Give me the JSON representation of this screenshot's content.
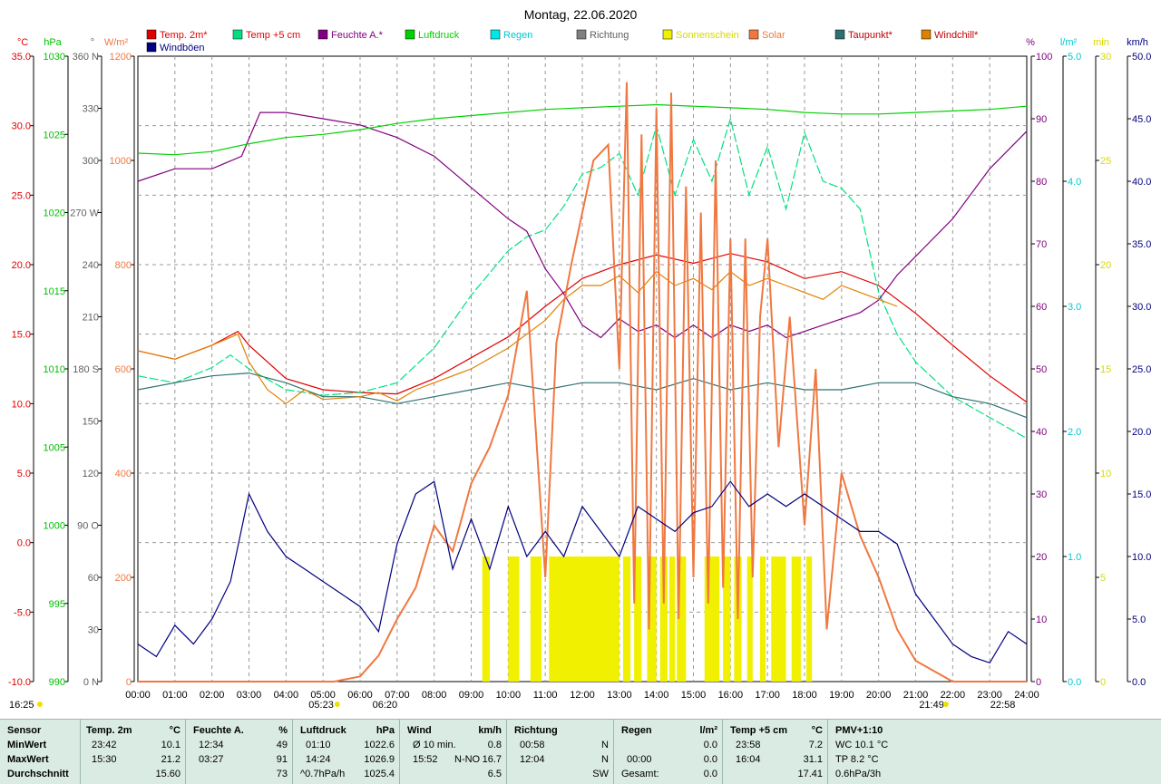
{
  "chart_data": {
    "type": "line",
    "title": "Montag, 22.06.2020",
    "x": [
      "00:00",
      "01:00",
      "02:00",
      "03:00",
      "04:00",
      "05:00",
      "06:00",
      "07:00",
      "08:00",
      "09:00",
      "10:00",
      "11:00",
      "12:00",
      "13:00",
      "14:00",
      "15:00",
      "16:00",
      "17:00",
      "18:00",
      "19:00",
      "20:00",
      "21:00",
      "22:00",
      "23:00",
      "24:00"
    ],
    "legend": [
      "Temp. 2m*",
      "Temp +5 cm",
      "Feuchte A.*",
      "Luftdruck",
      "Regen",
      "Richtung",
      "Sonnenschein",
      "Solar",
      "Taupunkt*",
      "Windchill*",
      "Windböen"
    ],
    "axes": {
      "temp": {
        "unit": "°C",
        "ticks": [
          "35.0",
          "30.0",
          "25.0",
          "20.0",
          "15.0",
          "10.0",
          "5.0",
          "0.0",
          "-5.0",
          "-10.0"
        ],
        "ylim": [
          -10,
          35
        ]
      },
      "pressure": {
        "unit": "hPa",
        "ticks": [
          "1030",
          "1025",
          "1020",
          "1015",
          "1010",
          "1005",
          "1000",
          "995",
          "990"
        ],
        "ylim": [
          990,
          1030
        ]
      },
      "direction": {
        "unit": "°",
        "ticks": [
          "360 N",
          "330",
          "300",
          "270 W",
          "240",
          "210",
          "180 S",
          "150",
          "120",
          "90 O",
          "60",
          "30",
          "0 N"
        ],
        "ylim": [
          0,
          360
        ]
      },
      "solar": {
        "unit": "W/m²",
        "ticks": [
          "1200",
          "1000",
          "800",
          "600",
          "400",
          "200",
          "0"
        ],
        "ylim": [
          0,
          1200
        ]
      },
      "humidity": {
        "unit": "%",
        "ticks": [
          "100",
          "90",
          "80",
          "70",
          "60",
          "50",
          "40",
          "30",
          "20",
          "10",
          "0"
        ],
        "ylim": [
          0,
          100
        ]
      },
      "rain": {
        "unit": "l/m²",
        "ticks": [
          "5.0",
          "4.0",
          "3.0",
          "2.0",
          "1.0",
          "0.0"
        ],
        "ylim": [
          0,
          5
        ]
      },
      "sunshine": {
        "unit": "min",
        "ticks": [
          "30",
          "25",
          "20",
          "15",
          "10",
          "5",
          "0"
        ],
        "ylim": [
          0,
          30
        ]
      },
      "wind": {
        "unit": "km/h",
        "ticks": [
          "50.0",
          "45.0",
          "40.0",
          "35.0",
          "30.0",
          "25.0",
          "20.0",
          "15.0",
          "10.0",
          "5.0",
          "0.0"
        ],
        "ylim": [
          0,
          50
        ]
      }
    },
    "series": [
      {
        "name": "Temp. 2m*",
        "axis": "temp",
        "color": "#e00000",
        "x": [
          0,
          1,
          2,
          2.7,
          3,
          4,
          5,
          6,
          7,
          8,
          9,
          10,
          11,
          12,
          13,
          14,
          15,
          16,
          17,
          18,
          19,
          20,
          21,
          22,
          23,
          24
        ],
        "values": [
          13.8,
          13.2,
          14.2,
          15.2,
          14.2,
          11.8,
          11.0,
          10.8,
          10.7,
          11.8,
          13.3,
          14.8,
          17.0,
          19.0,
          20.0,
          20.7,
          20.1,
          20.8,
          20.2,
          19.0,
          19.5,
          18.5,
          16.5,
          14.2,
          12.0,
          10.1
        ]
      },
      {
        "name": "Temp +5 cm",
        "axis": "temp",
        "color": "#00e080",
        "x": [
          0,
          1,
          2,
          2.5,
          3,
          4,
          5,
          6,
          7,
          8,
          9,
          10,
          10.5,
          11,
          11.5,
          12,
          12.5,
          13,
          13.5,
          14,
          14.5,
          15,
          15.5,
          16,
          16.5,
          17,
          17.5,
          18,
          18.5,
          19,
          19.5,
          20,
          20.5,
          21,
          22,
          23,
          24
        ],
        "values": [
          12.0,
          11.5,
          12.6,
          13.5,
          12.5,
          11.0,
          10.6,
          10.8,
          11.5,
          14.0,
          17.8,
          21.0,
          22.0,
          22.5,
          24.2,
          26.5,
          27.0,
          28.0,
          25.0,
          30.0,
          25.0,
          29.0,
          26.0,
          30.5,
          25.0,
          28.5,
          24.0,
          29.5,
          26.0,
          25.5,
          24.0,
          18.0,
          15.0,
          13.0,
          10.5,
          9.0,
          7.5
        ]
      },
      {
        "name": "Feuchte A.*",
        "axis": "humidity",
        "color": "#800080",
        "x": [
          0,
          1,
          2,
          2.8,
          3.3,
          4,
          5,
          6,
          7,
          8,
          9,
          10,
          10.5,
          11,
          11.5,
          12,
          12.5,
          13,
          13.5,
          14,
          14.5,
          15,
          15.5,
          16,
          16.5,
          17,
          17.5,
          18,
          18.5,
          19,
          19.5,
          20,
          20.5,
          21,
          22,
          23,
          24
        ],
        "values": [
          80,
          82,
          82,
          84,
          91,
          91,
          90,
          89,
          87,
          84,
          79,
          74,
          72,
          66,
          62,
          57,
          55,
          58,
          56,
          57,
          55,
          57,
          55,
          57,
          56,
          57,
          55,
          56,
          57,
          58,
          59,
          61,
          65,
          68,
          74,
          82,
          88
        ]
      },
      {
        "name": "Luftdruck",
        "axis": "pressure",
        "color": "#00d000",
        "x": [
          0,
          1,
          2,
          3,
          4,
          5,
          6,
          7,
          8,
          9,
          10,
          11,
          12,
          13,
          14,
          15,
          16,
          17,
          18,
          19,
          20,
          21,
          22,
          23,
          24
        ],
        "values": [
          1023.8,
          1023.7,
          1023.9,
          1024.4,
          1024.8,
          1025.0,
          1025.3,
          1025.7,
          1026.0,
          1026.2,
          1026.4,
          1026.6,
          1026.7,
          1026.8,
          1026.9,
          1026.8,
          1026.7,
          1026.6,
          1026.4,
          1026.3,
          1026.3,
          1026.4,
          1026.5,
          1026.6,
          1026.8
        ]
      },
      {
        "name": "Taupunkt*",
        "axis": "temp",
        "color": "#2f6f6f",
        "x": [
          0,
          1,
          2,
          3,
          4,
          5,
          6,
          7,
          8,
          9,
          10,
          11,
          12,
          13,
          14,
          15,
          16,
          17,
          18,
          19,
          20,
          21,
          22,
          23,
          24
        ],
        "values": [
          11.0,
          11.5,
          12.0,
          12.2,
          11.5,
          10.5,
          10.5,
          10.0,
          10.5,
          11.0,
          11.5,
          11.0,
          11.5,
          11.5,
          11.0,
          11.8,
          11.0,
          11.5,
          11.0,
          11.0,
          11.5,
          11.5,
          10.5,
          10.0,
          9.0
        ]
      },
      {
        "name": "Windchill*",
        "axis": "temp",
        "color": "#e08000",
        "x": [
          0,
          1,
          2,
          2.7,
          3,
          3.5,
          4,
          4.5,
          5,
          6,
          6.5,
          7,
          7.5,
          8,
          9,
          10,
          11,
          11.5,
          12,
          12.5,
          13,
          13.5,
          14,
          14.5,
          15,
          15.5,
          16,
          16.5,
          17,
          17.5,
          18,
          18.5,
          19,
          19.5,
          20,
          20.5
        ],
        "values": [
          13.8,
          13.2,
          14.2,
          15.0,
          13.0,
          11.0,
          10.0,
          11.0,
          10.3,
          10.5,
          10.8,
          10.2,
          11.0,
          11.5,
          12.5,
          14.0,
          16.0,
          17.5,
          18.5,
          18.5,
          19.2,
          18.0,
          19.5,
          18.5,
          19.0,
          18.2,
          19.5,
          18.5,
          19.0,
          18.5,
          18.0,
          17.5,
          18.5,
          18.0,
          17.5,
          17.0
        ]
      },
      {
        "name": "Solar",
        "axis": "solar",
        "color": "#f07840",
        "x": [
          0,
          5.3,
          6,
          6.5,
          7,
          7.5,
          8,
          8.5,
          9,
          9.5,
          10,
          10.5,
          10.8,
          11,
          11.3,
          11.7,
          12,
          12.3,
          12.7,
          13,
          13.2,
          13.4,
          13.6,
          13.8,
          14,
          14.2,
          14.4,
          14.6,
          14.8,
          15,
          15.2,
          15.4,
          15.6,
          15.8,
          16,
          16.2,
          16.4,
          16.6,
          16.8,
          17,
          17.3,
          17.6,
          18,
          18.3,
          18.6,
          19,
          19.5,
          20,
          20.5,
          21,
          21.5,
          22,
          24
        ],
        "values": [
          0,
          0,
          10,
          50,
          120,
          180,
          300,
          250,
          380,
          450,
          550,
          750,
          420,
          200,
          650,
          800,
          900,
          1000,
          1030,
          600,
          1150,
          150,
          1050,
          100,
          1100,
          150,
          1130,
          120,
          950,
          200,
          900,
          150,
          1000,
          180,
          850,
          120,
          850,
          200,
          700,
          850,
          450,
          700,
          300,
          600,
          100,
          400,
          280,
          200,
          100,
          40,
          20,
          0,
          0
        ]
      },
      {
        "name": "Windböen",
        "axis": "wind",
        "color": "#000080",
        "x": [
          0,
          0.5,
          1,
          1.5,
          2,
          2.5,
          3,
          3.5,
          4,
          4.5,
          5,
          5.5,
          6,
          6.5,
          7,
          7.5,
          8,
          8.5,
          9,
          9.5,
          10,
          10.5,
          11,
          11.5,
          12,
          12.5,
          13,
          13.5,
          14,
          14.5,
          15,
          15.5,
          16,
          16.5,
          17,
          17.5,
          18,
          18.5,
          19,
          19.5,
          20,
          20.5,
          21,
          21.5,
          22,
          22.5,
          23,
          23.5,
          24
        ],
        "values": [
          3.0,
          2.0,
          4.5,
          3.0,
          5.0,
          8.0,
          15.0,
          12.0,
          10.0,
          9.0,
          8.0,
          7.0,
          6.0,
          4.0,
          11.0,
          15.0,
          16.0,
          9.0,
          13.0,
          9.0,
          14.0,
          10.0,
          12.0,
          10.0,
          14.0,
          12.0,
          10.0,
          14.0,
          13.0,
          12.0,
          13.5,
          14.0,
          16.0,
          14.0,
          15.0,
          14.0,
          15.0,
          14.0,
          13.0,
          12.0,
          12.0,
          11.0,
          7.0,
          5.0,
          3.0,
          2.0,
          1.5,
          4.0,
          3.0
        ]
      }
    ],
    "sunshine_bars": [
      [
        9.3,
        9.5
      ],
      [
        10.0,
        10.3
      ],
      [
        10.6,
        10.9
      ],
      [
        11.1,
        13.0
      ],
      [
        13.1,
        13.3
      ],
      [
        13.4,
        13.6
      ],
      [
        13.75,
        14.0
      ],
      [
        14.1,
        14.3
      ],
      [
        14.35,
        14.5
      ],
      [
        14.55,
        14.8
      ],
      [
        15.3,
        15.7
      ],
      [
        15.8,
        16.0
      ],
      [
        16.1,
        16.3
      ],
      [
        16.45,
        16.6
      ],
      [
        16.8,
        16.95
      ],
      [
        17.1,
        17.5
      ],
      [
        17.65,
        17.9
      ],
      [
        18.05,
        18.2
      ]
    ],
    "markers": {
      "moonrise": "16:25",
      "sunrise": "05:23",
      "civil_dawn": "06:20",
      "sunset": "21:49",
      "moonset": "22:58"
    }
  },
  "stats": {
    "header": [
      "Sensor",
      "Temp. 2m",
      "°C",
      "Feuchte A.",
      "%",
      "Luftdruck",
      "hPa",
      "Wind",
      "km/h",
      "Richtung",
      "Regen",
      "l/m²",
      "Temp +5 cm",
      "°C",
      "PMV+1:10"
    ],
    "labels": [
      "MinWert",
      "MaxWert",
      "Durchschnitt"
    ],
    "temp2m": {
      "min_time": "23:42",
      "min": "10.1",
      "max_time": "15:30",
      "max": "21.2",
      "avg": "15.60"
    },
    "humidity": {
      "min_time": "12:34",
      "min": "49",
      "max_time": "03:27",
      "max": "91",
      "avg": "73"
    },
    "pressure": {
      "min_time": "01:10",
      "min": "1022.6",
      "max_time": "14:24",
      "max": "1026.9",
      "trend": "^0.7hPa/h",
      "avg": "1025.4"
    },
    "wind": {
      "row1_label": "Ø 10 min.",
      "row1_val": "0.8",
      "row2_time": "15:52",
      "row2_dir": "N-NO",
      "row2_val": "16.7",
      "avg": "6.5"
    },
    "direction": {
      "r1_time": "00:58",
      "r1": "N",
      "r2_time": "12:04",
      "r2": "N",
      "avg": "SW"
    },
    "rain": {
      "r2_time": "00:00",
      "r2": "0.0",
      "total_label": "Gesamt:",
      "total": "0.0",
      "r1": "0.0"
    },
    "temp5cm": {
      "min_time": "23:58",
      "min": "7.2",
      "max_time": "16:04",
      "max": "31.1",
      "avg": "17.41"
    },
    "pmv": {
      "r1": "WC 10.1 °C",
      "r2": "TP 8.2 °C",
      "r3": "0.6hPa/3h"
    }
  }
}
